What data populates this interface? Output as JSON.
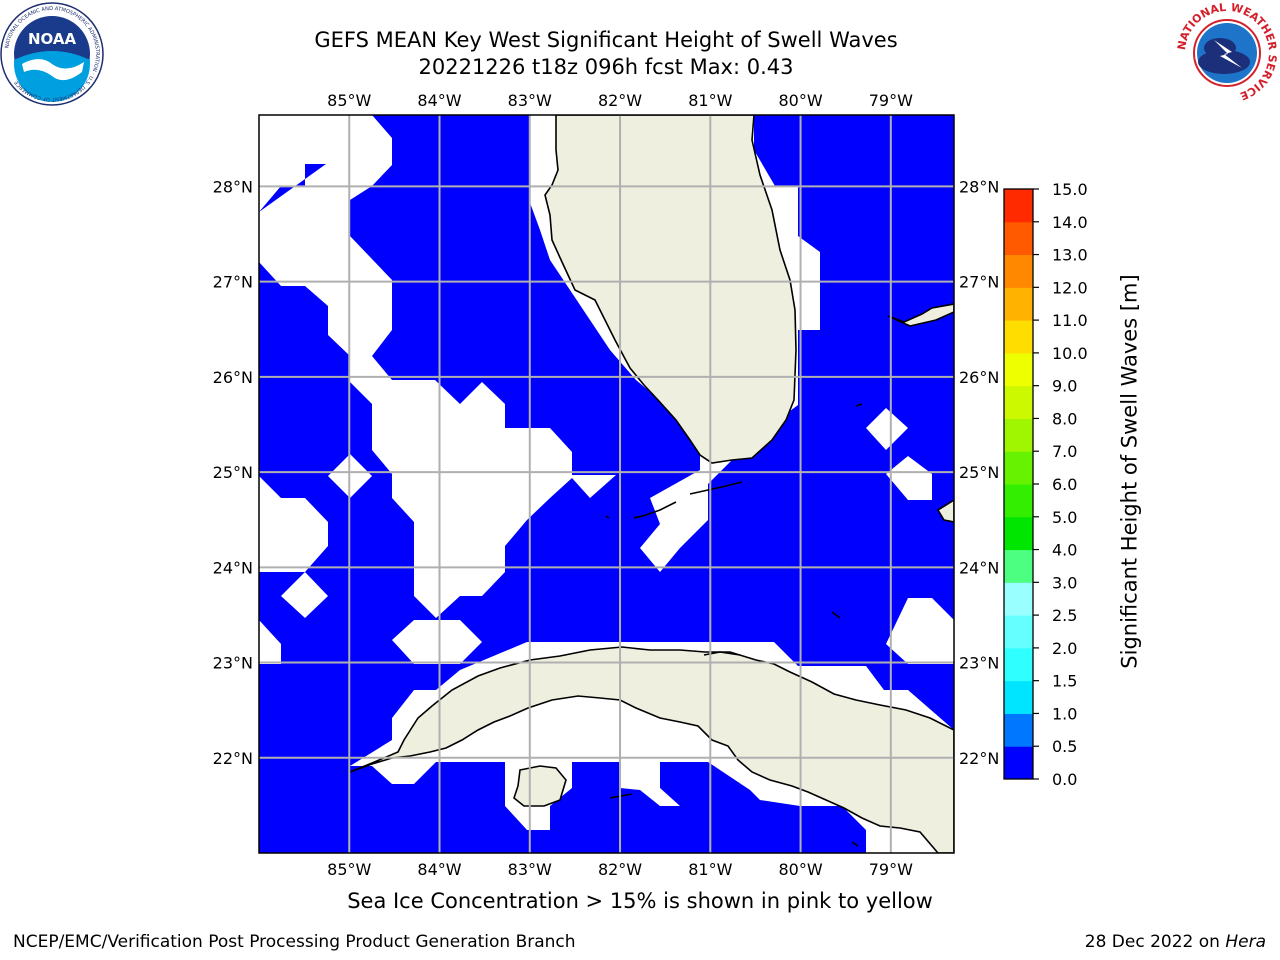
{
  "title": {
    "line1": "GEFS MEAN Key West Significant Height of Swell Waves",
    "line2": "20221226 t18z 096h fcst   Max: 0.43"
  },
  "map": {
    "lon_ticks": [
      "85°W",
      "84°W",
      "83°W",
      "82°W",
      "81°W",
      "80°W",
      "79°W"
    ],
    "lat_ticks": [
      "28°N",
      "27°N",
      "26°N",
      "25°N",
      "24°N",
      "23°N",
      "22°N"
    ],
    "extent": {
      "lon": [
        -86.0,
        -78.3
      ],
      "lat": [
        21.0,
        28.75
      ]
    },
    "ocean_color": "#0000ff",
    "no_data_color": "#ffffff",
    "land_color": "#efefdf",
    "gridline_color": "#b0b0b0"
  },
  "colorbar": {
    "label": "Significant Height of Swell Waves [m]",
    "ticks": [
      "0.0",
      "0.5",
      "1.0",
      "1.5",
      "2.0",
      "2.5",
      "3.0",
      "4.0",
      "5.0",
      "6.0",
      "7.0",
      "8.0",
      "9.0",
      "10.0",
      "11.0",
      "12.0",
      "13.0",
      "14.0",
      "15.0"
    ],
    "colors": [
      "#0000ff",
      "#0077ff",
      "#00e5ff",
      "#30ffff",
      "#66ffff",
      "#99ffff",
      "#4dff80",
      "#00e600",
      "#33ee00",
      "#66f200",
      "#a0f500",
      "#ccf800",
      "#eeff00",
      "#ffdd00",
      "#ffb300",
      "#ff8800",
      "#ff5a00",
      "#ff2a00",
      "#ff0000"
    ]
  },
  "logos": {
    "left": {
      "icon": "noaa-logo",
      "text": "NOAA",
      "ring_text": "NATIONAL OCEANIC AND ATMOSPHERIC ADMINISTRATION · U.S. DEPARTMENT OF COMMERCE"
    },
    "right": {
      "icon": "nws-logo",
      "ring_text": "NATIONAL WEATHER SERVICE"
    }
  },
  "footer": {
    "note": "Sea Ice Concentration > 15% is shown in pink to yellow",
    "left": "NCEP/EMC/Verification Post Processing Product Generation Branch",
    "right_date": "28 Dec 2022 on ",
    "right_host": "Hera"
  }
}
